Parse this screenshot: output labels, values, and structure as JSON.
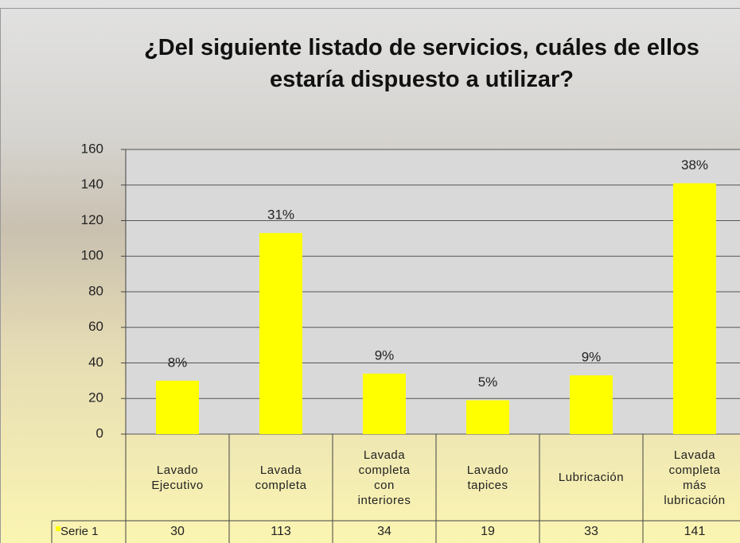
{
  "chart_data": {
    "type": "bar",
    "title": "¿Del siguiente listado de servicios, cuáles de ellos estaría dispuesto a utilizar?",
    "categories": [
      "Lavado Ejecutivo",
      "Lavada completa",
      "Lavada completa con interiores",
      "Lavado tapices",
      "Lubricación",
      "Lavada completa más lubricación"
    ],
    "series": [
      {
        "name": "Serie 1",
        "color": "#ffff00",
        "values": [
          30,
          113,
          34,
          19,
          33,
          141
        ]
      }
    ],
    "percent_labels": [
      "8%",
      "31%",
      "9%",
      "5%",
      "9%",
      "38%"
    ],
    "ylim": [
      0,
      160
    ],
    "yticks": [
      0,
      20,
      40,
      60,
      80,
      100,
      120,
      140,
      160
    ],
    "grid": true
  }
}
